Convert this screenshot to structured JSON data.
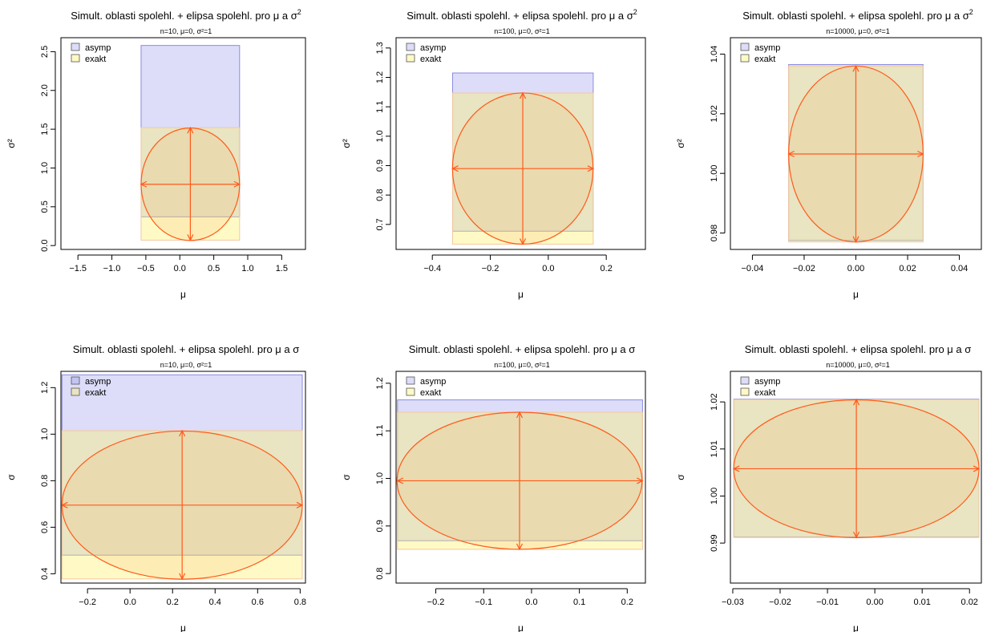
{
  "colors": {
    "asymp_fill": "rgba(120,120,230,0.25)",
    "asymp_stroke": "#8a8ae0",
    "exakt_fill": "rgba(255,240,90,0.35)",
    "exakt_stroke": "#f2c9a0",
    "ellipse_fill": "rgba(235,150,60,0.12)",
    "ellipse_stroke": "#ff5a1a"
  },
  "chart_data": [
    {
      "type": "region",
      "title_main": "Simult. oblasti spolehl. + elipsa spolehl. pro μ a σ",
      "title_sup": "2",
      "subtitle": "n=10, μ=0, σ²=1",
      "xlabel": "μ",
      "ylabel": "σ²",
      "xlim": [
        -1.75,
        1.85
      ],
      "ylim": [
        -0.05,
        2.68
      ],
      "xticks": [
        "−1.5",
        "−1.0",
        "−0.5",
        "0.0",
        "0.5",
        "1.0",
        "1.5"
      ],
      "xtick_values": [
        -1.5,
        -1.0,
        -0.5,
        0.0,
        0.5,
        1.0,
        1.5
      ],
      "yticks": [
        "0.0",
        "0.5",
        "1.0",
        "1.5",
        "2.0",
        "2.5"
      ],
      "ytick_values": [
        0.0,
        0.5,
        1.0,
        1.5,
        2.0,
        2.5
      ],
      "legend": [
        "asymp",
        "exakt"
      ],
      "legend_position": "top-left",
      "asymp": {
        "x": [
          -0.57,
          0.88
        ],
        "y": [
          0.37,
          2.58
        ]
      },
      "exakt": {
        "x": [
          -0.57,
          0.88
        ],
        "y": [
          0.07,
          1.52
        ]
      },
      "ellipse": {
        "cx": 0.155,
        "cy": 0.79,
        "x": [
          -0.57,
          0.88
        ],
        "y": [
          0.07,
          1.52
        ]
      }
    },
    {
      "type": "region",
      "title_main": "Simult. oblasti spolehl. + elipsa spolehl. pro μ a σ",
      "title_sup": "2",
      "subtitle": "n=100, μ=0, σ²=1",
      "xlabel": "μ",
      "ylabel": "σ²",
      "xlim": [
        -0.525,
        0.335
      ],
      "ylim": [
        0.615,
        1.335
      ],
      "xticks": [
        "−0.4",
        "−0.2",
        "0.0",
        "0.2"
      ],
      "xtick_values": [
        -0.4,
        -0.2,
        0.0,
        0.2
      ],
      "yticks": [
        "0.7",
        "0.8",
        "0.9",
        "1.0",
        "1.1",
        "1.2",
        "1.3"
      ],
      "ytick_values": [
        0.7,
        0.8,
        0.9,
        1.0,
        1.1,
        1.2,
        1.3
      ],
      "legend": [
        "asymp",
        "exakt"
      ],
      "legend_position": "top-left",
      "asymp": {
        "x": [
          -0.33,
          0.155
        ],
        "y": [
          0.677,
          1.215
        ]
      },
      "exakt": {
        "x": [
          -0.33,
          0.155
        ],
        "y": [
          0.633,
          1.147
        ]
      },
      "ellipse": {
        "cx": -0.088,
        "cy": 0.89,
        "x": [
          -0.33,
          0.155
        ],
        "y": [
          0.633,
          1.147
        ]
      }
    },
    {
      "type": "region",
      "title_main": "Simult. oblasti spolehl. + elipsa spolehl. pro μ a σ",
      "title_sup": "2",
      "subtitle": "n=10000, μ=0, σ²=1",
      "xlabel": "μ",
      "ylabel": "σ²",
      "xlim": [
        -0.0485,
        0.0485
      ],
      "ylim": [
        0.9745,
        1.0455
      ],
      "xticks": [
        "−0.04",
        "−0.02",
        "0.00",
        "0.02",
        "0.04"
      ],
      "xtick_values": [
        -0.04,
        -0.02,
        0.0,
        0.02,
        0.04
      ],
      "yticks": [
        "0.98",
        "1.00",
        "1.02",
        "1.04"
      ],
      "ytick_values": [
        0.98,
        1.0,
        1.02,
        1.04
      ],
      "legend": [
        "asymp",
        "exakt"
      ],
      "legend_position": "top-left",
      "asymp": {
        "x": [
          -0.026,
          0.026
        ],
        "y": [
          0.9775,
          1.0365
        ]
      },
      "exakt": {
        "x": [
          -0.026,
          0.026
        ],
        "y": [
          0.977,
          1.036
        ]
      },
      "ellipse": {
        "cx": 0.0,
        "cy": 1.0065,
        "x": [
          -0.026,
          0.026
        ],
        "y": [
          0.977,
          1.036
        ]
      }
    },
    {
      "type": "region",
      "title_main": "Simult. oblasti spolehl. + elipsa spolehl. pro μ a σ",
      "title_sup": "",
      "subtitle": "n=10, μ=0, σ²=1",
      "xlabel": "μ",
      "ylabel": "σ",
      "xlim": [
        -0.325,
        0.825
      ],
      "ylim": [
        0.36,
        1.27
      ],
      "xticks": [
        "−0.2",
        "0.0",
        "0.2",
        "0.4",
        "0.6",
        "0.8"
      ],
      "xtick_values": [
        -0.2,
        0.0,
        0.2,
        0.4,
        0.6,
        0.8
      ],
      "yticks": [
        "0.4",
        "0.6",
        "0.8",
        "1.0",
        "1.2"
      ],
      "ytick_values": [
        0.4,
        0.6,
        0.8,
        1.0,
        1.2
      ],
      "legend": [
        "asymp",
        "exakt"
      ],
      "legend_position": "top-left",
      "asymp": {
        "x": [
          -0.32,
          0.81
        ],
        "y": [
          0.48,
          1.255
        ]
      },
      "exakt": {
        "x": [
          -0.32,
          0.81
        ],
        "y": [
          0.378,
          1.015
        ]
      },
      "ellipse": {
        "cx": 0.245,
        "cy": 0.695,
        "x": [
          -0.32,
          0.81
        ],
        "y": [
          0.378,
          1.015
        ]
      }
    },
    {
      "type": "region",
      "title_main": "Simult. oblasti spolehl. + elipsa spolehl. pro μ a σ",
      "title_sup": "",
      "subtitle": "n=100, μ=0, σ²=1",
      "xlabel": "μ",
      "ylabel": "σ",
      "xlim": [
        -0.283,
        0.238
      ],
      "ylim": [
        0.78,
        1.225
      ],
      "xticks": [
        "−0.2",
        "−0.1",
        "0.0",
        "0.1",
        "0.2"
      ],
      "xtick_values": [
        -0.2,
        -0.1,
        0.0,
        0.1,
        0.2
      ],
      "yticks": [
        "0.8",
        "0.9",
        "1.0",
        "1.1",
        "1.2"
      ],
      "ytick_values": [
        0.8,
        0.9,
        1.0,
        1.1,
        1.2
      ],
      "legend": [
        "asymp",
        "exakt"
      ],
      "legend_position": "top-left",
      "asymp": {
        "x": [
          -0.28,
          0.232
        ],
        "y": [
          0.869,
          1.165
        ]
      },
      "exakt": {
        "x": [
          -0.28,
          0.232
        ],
        "y": [
          0.851,
          1.139
        ]
      },
      "ellipse": {
        "cx": -0.025,
        "cy": 0.995,
        "x": [
          -0.28,
          0.232
        ],
        "y": [
          0.851,
          1.139
        ]
      }
    },
    {
      "type": "region",
      "title_main": "Simult. oblasti spolehl. + elipsa spolehl. pro μ a σ",
      "title_sup": "",
      "subtitle": "n=10000, μ=0, σ²=1",
      "xlabel": "μ",
      "ylabel": "σ",
      "xlim": [
        -0.0305,
        0.0225
      ],
      "ylim": [
        0.9815,
        1.0265
      ],
      "xticks": [
        "−0.03",
        "−0.02",
        "−0.01",
        "0.00",
        "0.01",
        "0.02"
      ],
      "xtick_values": [
        -0.03,
        -0.02,
        -0.01,
        0.0,
        0.01,
        0.02
      ],
      "yticks": [
        "0.99",
        "1.00",
        "1.01",
        "1.02"
      ],
      "ytick_values": [
        0.99,
        1.0,
        1.01,
        1.02
      ],
      "legend": [
        "asymp",
        "exakt"
      ],
      "legend_position": "top-left",
      "asymp": {
        "x": [
          -0.0298,
          0.022
        ],
        "y": [
          0.9913,
          1.0206
        ]
      },
      "exakt": {
        "x": [
          -0.0298,
          0.022
        ],
        "y": [
          0.9912,
          1.0205
        ]
      },
      "ellipse": {
        "cx": -0.0039,
        "cy": 1.0058,
        "x": [
          -0.0298,
          0.022
        ],
        "y": [
          0.9912,
          1.0205
        ]
      }
    }
  ]
}
